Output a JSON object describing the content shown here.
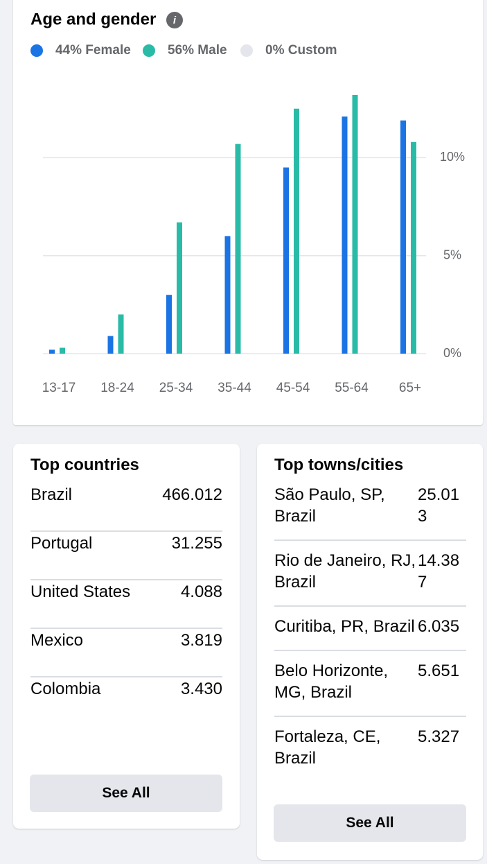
{
  "chart_data": {
    "type": "bar",
    "title": "Age and gender",
    "categories": [
      "13-17",
      "18-24",
      "25-34",
      "35-44",
      "45-54",
      "55-64",
      "65+"
    ],
    "series": [
      {
        "name": "44% Female",
        "color": "#1b74e4",
        "values": [
          0.2,
          0.9,
          3.0,
          6.0,
          9.5,
          12.1,
          11.9
        ]
      },
      {
        "name": "56% Male",
        "color": "#2abba7",
        "values": [
          0.3,
          2.0,
          6.7,
          10.7,
          12.5,
          13.2,
          10.8
        ]
      },
      {
        "name": "0% Custom",
        "color": "#e4e6eb",
        "values": [
          0,
          0,
          0,
          0,
          0,
          0,
          0
        ]
      }
    ],
    "ylim": [
      0,
      13.8
    ],
    "yticks": [
      {
        "value": 0,
        "label": "0%"
      },
      {
        "value": 5,
        "label": "5%"
      },
      {
        "value": 10,
        "label": "10%"
      }
    ],
    "grid": true
  },
  "countries": {
    "title": "Top countries",
    "rows": [
      {
        "name": "Brazil",
        "value": "466.012"
      },
      {
        "name": "Portugal",
        "value": "31.255"
      },
      {
        "name": "United States",
        "value": "4.088"
      },
      {
        "name": "Mexico",
        "value": "3.819"
      },
      {
        "name": "Colombia",
        "value": "3.430"
      }
    ],
    "button": "See All"
  },
  "cities": {
    "title": "Top towns/cities",
    "rows": [
      {
        "name": "São Paulo, SP, Brazil",
        "value": "25.013"
      },
      {
        "name": "Rio de Janeiro, RJ, Brazil",
        "value": "14.387"
      },
      {
        "name": "Curitiba, PR, Brazil",
        "value": "6.035"
      },
      {
        "name": "Belo Horizonte, MG, Brazil",
        "value": "5.651"
      },
      {
        "name": "Fortaleza, CE, Brazil",
        "value": "5.327"
      }
    ],
    "button": "See All"
  }
}
